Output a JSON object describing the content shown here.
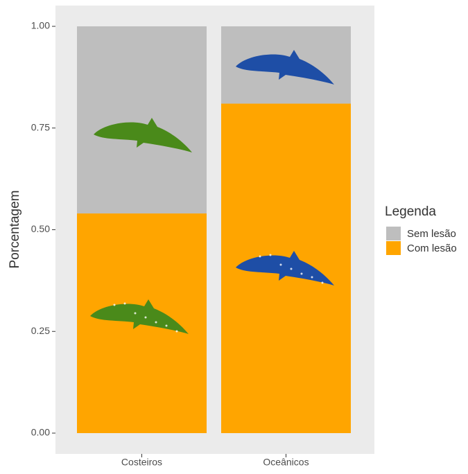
{
  "chart_data": {
    "type": "stacked-bar",
    "categories": [
      "Costeiros",
      "Oceânicos"
    ],
    "series": [
      {
        "name": "Sem lesão",
        "color": "#bebebe",
        "values": [
          0.46,
          0.19
        ]
      },
      {
        "name": "Com lesão",
        "color": "#ffa500",
        "values": [
          0.54,
          0.81
        ]
      }
    ],
    "y_label": "Porcentagem",
    "legend_title": "Legenda",
    "legend": "right",
    "ylim": [
      0,
      1
    ],
    "yticks": [
      {
        "value": 0,
        "label": "0.00"
      },
      {
        "value": 0.25,
        "label": "0.25"
      },
      {
        "value": 0.5,
        "label": "0.50"
      },
      {
        "value": 0.75,
        "label": "0.75"
      },
      {
        "value": 1,
        "label": "1.00"
      }
    ]
  }
}
